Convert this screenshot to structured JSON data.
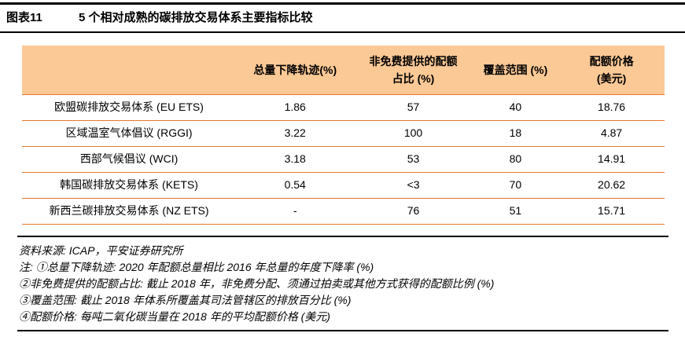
{
  "header": {
    "figure_label": "图表11",
    "title": "5 个相对成熟的碳排放交易体系主要指标比较"
  },
  "table": {
    "header": [
      "",
      "总量下降轨迹(%)",
      "非免费提供的配额\n占比 (%)",
      "覆盖范围 (%)",
      "配额价格\n(美元)"
    ],
    "rows": [
      [
        "欧盟碳排放交易体系 (EU ETS)",
        "1.86",
        "57",
        "40",
        "18.76"
      ],
      [
        "区域温室气体倡议 (RGGI)",
        "3.22",
        "100",
        "18",
        "4.87"
      ],
      [
        "西部气候倡议 (WCI)",
        "3.18",
        "53",
        "80",
        "14.91"
      ],
      [
        "韩国碳排放交易体系 (KETS)",
        "0.54",
        "<3",
        "70",
        "20.62"
      ],
      [
        "新西兰碳排放交易体系 (NZ ETS)",
        "-",
        "76",
        "51",
        "15.71"
      ]
    ]
  },
  "notes": {
    "source": "资料来源: ICAP，平安证券研究所",
    "items": [
      "注: ①总量下降轨迹: 2020 年配额总量相比 2016 年总量的年度下降率 (%)",
      "②非免费提供的配额占比: 截止 2018 年，非免费分配、须通过拍卖或其他方式获得的配额比例 (%)",
      "③覆盖范围: 截止 2018 年体系所覆盖其司法管辖区的排放百分比 (%)",
      "④配额价格: 每吨二氧化碳当量在 2018 年的平均配额价格 (美元)"
    ]
  },
  "colors": {
    "table_header_bg": "#FBC996",
    "row_divider": "#E8772A",
    "rule": "#000000"
  }
}
